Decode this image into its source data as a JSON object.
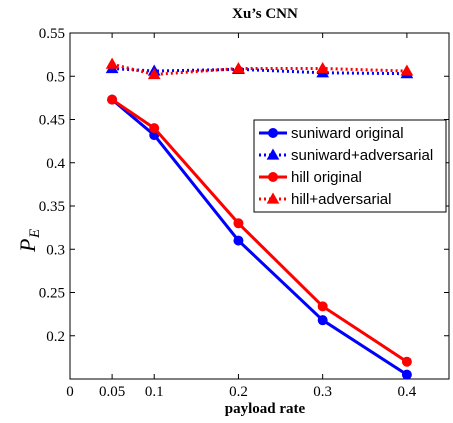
{
  "chart_data": {
    "type": "line",
    "title": "Xu’s CNN",
    "xlabel": "payload rate",
    "ylabel": "P",
    "ylabel_sub": "E",
    "xlim": [
      0,
      0.45
    ],
    "ylim": [
      0.15,
      0.55
    ],
    "xticks": [
      0,
      0.05,
      0.1,
      0.2,
      0.3,
      0.4
    ],
    "xtick_labels": [
      "0",
      "0.05",
      "0.1",
      "0.2",
      "0.3",
      "0.4"
    ],
    "yticks": [
      0.2,
      0.25,
      0.3,
      0.35,
      0.4,
      0.45,
      0.5,
      0.55
    ],
    "ytick_labels": [
      "0.2",
      "0.25",
      "0.3",
      "0.35",
      "0.4",
      "0.45",
      "0.5",
      "0.55"
    ],
    "grid": false,
    "legend_position": "right",
    "x": [
      0.05,
      0.1,
      0.2,
      0.3,
      0.4
    ],
    "series": [
      {
        "name": "suniward original",
        "values": [
          0.473,
          0.432,
          0.31,
          0.218,
          0.155
        ],
        "color": "#0000ff",
        "marker": "circle",
        "dash": "solid"
      },
      {
        "name": "suniward+adversarial",
        "values": [
          0.509,
          0.506,
          0.508,
          0.504,
          0.503
        ],
        "color": "#0000ff",
        "marker": "triangle",
        "dash": "dotted"
      },
      {
        "name": "hill original",
        "values": [
          0.473,
          0.44,
          0.33,
          0.234,
          0.17
        ],
        "color": "#ff0000",
        "marker": "circle",
        "dash": "solid"
      },
      {
        "name": "hill+adversarial",
        "values": [
          0.514,
          0.502,
          0.509,
          0.509,
          0.506
        ],
        "color": "#ff0000",
        "marker": "triangle",
        "dash": "dotted"
      }
    ]
  }
}
